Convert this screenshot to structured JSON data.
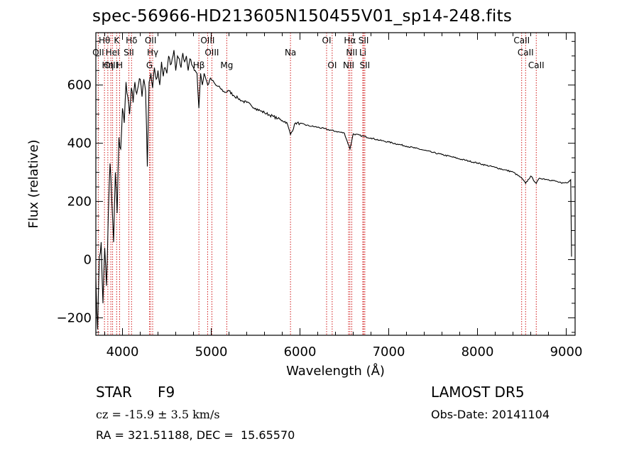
{
  "header": {
    "title": "spec-56966-HD213605N150455V01_sp14-248.fits"
  },
  "footer": {
    "object_type": "STAR",
    "spectral_class": "F9",
    "survey": "LAMOST DR5",
    "cz": "cz = -15.9 ± 3.5 km/s",
    "obs_date": "Obs-Date: 20141104",
    "radec": "RA = 321.51188, DEC =  15.65570"
  },
  "chart_data": {
    "type": "line",
    "xlabel": "Wavelength (Å)",
    "ylabel": "Flux (relative)",
    "xlim": [
      3700,
      9100
    ],
    "ylim": [
      -260,
      780
    ],
    "x_ticks": [
      4000,
      5000,
      6000,
      7000,
      8000,
      9000
    ],
    "y_ticks": [
      -200,
      0,
      200,
      400,
      600
    ],
    "grid": false,
    "line_color": "#000000",
    "marker_color": "#cc0000",
    "series": [
      {
        "x": [
          3700,
          3720,
          3740,
          3760,
          3780,
          3800,
          3820,
          3840,
          3860,
          3880,
          3900,
          3920,
          3940,
          3960,
          3980,
          4000,
          4020,
          4040,
          4060,
          4080,
          4100,
          4120,
          4140,
          4160,
          4180,
          4200,
          4220,
          4240,
          4260,
          4280,
          4300,
          4320,
          4340,
          4360,
          4380,
          4400,
          4420,
          4440,
          4460,
          4480,
          4500,
          4520,
          4540,
          4560,
          4580,
          4600,
          4620,
          4640,
          4660,
          4680,
          4700,
          4720,
          4740,
          4760,
          4780,
          4800,
          4820,
          4840,
          4861,
          4880,
          4900,
          4920,
          4940,
          4960,
          4980,
          5000,
          5050,
          5100,
          5150,
          5200,
          5250,
          5300,
          5350,
          5400,
          5450,
          5500,
          5550,
          5600,
          5650,
          5700,
          5750,
          5800,
          5850,
          5893,
          5950,
          6000,
          6100,
          6200,
          6300,
          6400,
          6500,
          6563,
          6600,
          6700,
          6800,
          6900,
          7000,
          7100,
          7200,
          7300,
          7400,
          7500,
          7600,
          7700,
          7800,
          7900,
          8000,
          8100,
          8200,
          8300,
          8400,
          8498,
          8542,
          8600,
          8662,
          8700,
          8800,
          8900,
          8950,
          9000,
          9040,
          9050,
          9060
        ],
        "y": [
          -60,
          -240,
          10,
          60,
          -150,
          40,
          -90,
          150,
          330,
          200,
          60,
          300,
          160,
          420,
          380,
          520,
          470,
          610,
          560,
          500,
          590,
          540,
          610,
          570,
          600,
          620,
          560,
          620,
          580,
          320,
          610,
          640,
          590,
          660,
          620,
          650,
          600,
          680,
          630,
          660,
          640,
          700,
          670,
          690,
          720,
          650,
          700,
          690,
          660,
          710,
          680,
          700,
          650,
          690,
          670,
          660,
          650,
          640,
          520,
          640,
          600,
          640,
          620,
          600,
          615,
          620,
          600,
          590,
          575,
          580,
          565,
          555,
          545,
          540,
          530,
          520,
          512,
          505,
          498,
          492,
          485,
          478,
          472,
          430,
          470,
          468,
          460,
          455,
          448,
          441,
          435,
          380,
          432,
          425,
          418,
          410,
          404,
          397,
          390,
          383,
          376,
          368,
          361,
          354,
          346,
          339,
          332,
          324,
          317,
          309,
          301,
          280,
          262,
          287,
          262,
          280,
          275,
          268,
          262,
          264,
          270,
          275,
          10
        ]
      }
    ],
    "line_markers": [
      {
        "label": "Hθ",
        "x": 3797,
        "row": 1
      },
      {
        "label": "K",
        "x": 3934,
        "row": 1
      },
      {
        "label": "Hδ",
        "x": 4102,
        "row": 1
      },
      {
        "label": "OII",
        "x": 4317,
        "row": 1
      },
      {
        "label": "OIII",
        "x": 4959,
        "row": 1
      },
      {
        "label": "OI",
        "x": 6300,
        "row": 1
      },
      {
        "label": "Hα",
        "x": 6563,
        "row": 1
      },
      {
        "label": "SII",
        "x": 6717,
        "row": 1
      },
      {
        "label": "CaII",
        "x": 8498,
        "row": 1
      },
      {
        "label": "OII",
        "x": 3727,
        "row": 2
      },
      {
        "label": "HeI",
        "x": 3889,
        "row": 2
      },
      {
        "label": "SII",
        "x": 4072,
        "row": 2
      },
      {
        "label": "Hγ",
        "x": 4340,
        "row": 2
      },
      {
        "label": "OIII",
        "x": 5007,
        "row": 2
      },
      {
        "label": "Na",
        "x": 5893,
        "row": 2
      },
      {
        "label": "NII",
        "x": 6583,
        "row": 2
      },
      {
        "label": "Li",
        "x": 6708,
        "row": 2
      },
      {
        "label": "CaII",
        "x": 8542,
        "row": 2
      },
      {
        "label": "OIII",
        "x": 3869,
        "row": 3
      },
      {
        "label": "Hη",
        "x": 3835,
        "row": 3
      },
      {
        "label": "H",
        "x": 3968,
        "row": 3
      },
      {
        "label": "G",
        "x": 4304,
        "row": 3
      },
      {
        "label": "Hβ",
        "x": 4861,
        "row": 3
      },
      {
        "label": "Mg",
        "x": 5175,
        "row": 3
      },
      {
        "label": "OI",
        "x": 6363,
        "row": 3
      },
      {
        "label": "NII",
        "x": 6548,
        "row": 3
      },
      {
        "label": "SII",
        "x": 6731,
        "row": 3
      },
      {
        "label": "CaII",
        "x": 8662,
        "row": 3
      }
    ]
  }
}
